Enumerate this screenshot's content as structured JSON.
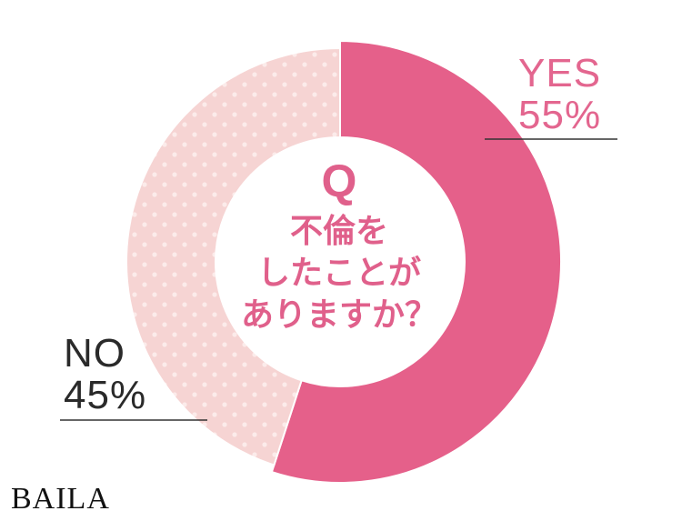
{
  "chart_data": {
    "type": "pie",
    "donut": true,
    "categories": [
      "YES",
      "NO"
    ],
    "values": [
      55,
      45
    ],
    "unit": "%",
    "labels": [
      {
        "name": "YES",
        "value": "55%"
      },
      {
        "name": "NO",
        "value": "45%"
      }
    ],
    "colors": {
      "YES": "#e5608a",
      "NO": "#f6d4d3",
      "NO_dots": "#fcebea"
    },
    "center": {
      "q": "Q",
      "lines": [
        "不倫を",
        "したことが",
        "ありますか？"
      ]
    }
  },
  "brand": {
    "logo": "BAILA"
  }
}
